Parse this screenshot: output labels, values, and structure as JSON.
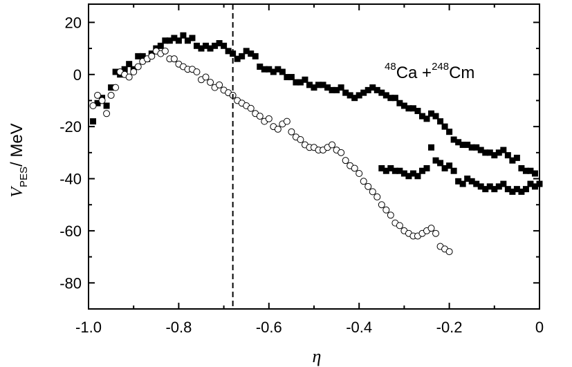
{
  "chart_data": {
    "type": "scatter",
    "xlabel": "η",
    "ylabel": {
      "main": "V",
      "sub": "PES",
      "rest": "/ MeV"
    },
    "xlim": [
      -1.0,
      0.0
    ],
    "ylim": [
      -90,
      27
    ],
    "x_ticks": [
      -1.0,
      -0.8,
      -0.6,
      -0.4,
      -0.2,
      0.0
    ],
    "x_tick_labels": [
      "-1.0",
      "-0.8",
      "-0.6",
      "-0.4",
      "-0.2",
      "0"
    ],
    "y_ticks": [
      20,
      0,
      -20,
      -40,
      -60,
      -80
    ],
    "y_tick_labels": [
      "20",
      "0",
      "-20",
      "-40",
      "-60",
      "-80"
    ],
    "grid": false,
    "vertical_line": {
      "x": -0.68,
      "style": "dashed"
    },
    "annotation": {
      "sup1": "48",
      "t1": "Ca +",
      "sup2": "248",
      "t2": "Cm"
    },
    "series": [
      {
        "marker": "filled-square",
        "points": [
          [
            -0.99,
            -18
          ],
          [
            -0.98,
            -11
          ],
          [
            -0.97,
            -9
          ],
          [
            -0.96,
            -12
          ],
          [
            -0.95,
            -5
          ],
          [
            -0.94,
            1
          ],
          [
            -0.93,
            0
          ],
          [
            -0.92,
            2
          ],
          [
            -0.91,
            4
          ],
          [
            -0.9,
            2
          ],
          [
            -0.89,
            7
          ],
          [
            -0.88,
            7
          ],
          [
            -0.87,
            6
          ],
          [
            -0.86,
            8
          ],
          [
            -0.85,
            10
          ],
          [
            -0.84,
            11
          ],
          [
            -0.83,
            13
          ],
          [
            -0.82,
            13
          ],
          [
            -0.81,
            14
          ],
          [
            -0.8,
            13
          ],
          [
            -0.79,
            15
          ],
          [
            -0.78,
            13
          ],
          [
            -0.77,
            14
          ],
          [
            -0.76,
            11
          ],
          [
            -0.75,
            10
          ],
          [
            -0.74,
            11
          ],
          [
            -0.73,
            10
          ],
          [
            -0.72,
            11
          ],
          [
            -0.71,
            12
          ],
          [
            -0.7,
            11
          ],
          [
            -0.69,
            9
          ],
          [
            -0.68,
            8
          ],
          [
            -0.67,
            6
          ],
          [
            -0.66,
            7
          ],
          [
            -0.65,
            9
          ],
          [
            -0.64,
            8
          ],
          [
            -0.63,
            7
          ],
          [
            -0.62,
            3
          ],
          [
            -0.61,
            2
          ],
          [
            -0.6,
            2
          ],
          [
            -0.59,
            1
          ],
          [
            -0.58,
            2
          ],
          [
            -0.57,
            1
          ],
          [
            -0.56,
            -1
          ],
          [
            -0.55,
            -1
          ],
          [
            -0.54,
            -3
          ],
          [
            -0.53,
            -3
          ],
          [
            -0.52,
            -2
          ],
          [
            -0.51,
            -4
          ],
          [
            -0.5,
            -5
          ],
          [
            -0.49,
            -4
          ],
          [
            -0.48,
            -4
          ],
          [
            -0.47,
            -5
          ],
          [
            -0.46,
            -6
          ],
          [
            -0.45,
            -6
          ],
          [
            -0.44,
            -5
          ],
          [
            -0.43,
            -7
          ],
          [
            -0.42,
            -8
          ],
          [
            -0.41,
            -9
          ],
          [
            -0.4,
            -8
          ],
          [
            -0.39,
            -7
          ],
          [
            -0.38,
            -6
          ],
          [
            -0.37,
            -5
          ],
          [
            -0.36,
            -6
          ],
          [
            -0.35,
            -7
          ],
          [
            -0.34,
            -8
          ],
          [
            -0.33,
            -9
          ],
          [
            -0.32,
            -9
          ],
          [
            -0.31,
            -11
          ],
          [
            -0.3,
            -12
          ],
          [
            -0.29,
            -13
          ],
          [
            -0.28,
            -13
          ],
          [
            -0.27,
            -14
          ],
          [
            -0.26,
            -16
          ],
          [
            -0.25,
            -17
          ],
          [
            -0.24,
            -15
          ],
          [
            -0.23,
            -16
          ],
          [
            -0.22,
            -18
          ],
          [
            -0.21,
            -20
          ],
          [
            -0.2,
            -22
          ],
          [
            -0.19,
            -25
          ],
          [
            -0.18,
            -26
          ],
          [
            -0.17,
            -27
          ],
          [
            -0.16,
            -27
          ],
          [
            -0.15,
            -28
          ],
          [
            -0.14,
            -28
          ],
          [
            -0.13,
            -29
          ],
          [
            -0.12,
            -30
          ],
          [
            -0.11,
            -30
          ],
          [
            -0.1,
            -31
          ],
          [
            -0.09,
            -30
          ],
          [
            -0.08,
            -29
          ],
          [
            -0.07,
            -31
          ],
          [
            -0.06,
            -33
          ],
          [
            -0.05,
            -32
          ],
          [
            -0.04,
            -36
          ],
          [
            -0.03,
            -37
          ],
          [
            -0.02,
            -37
          ],
          [
            -0.01,
            -38
          ],
          [
            0.0,
            -42
          ],
          [
            -0.35,
            -36
          ],
          [
            -0.34,
            -37
          ],
          [
            -0.33,
            -36
          ],
          [
            -0.32,
            -37
          ],
          [
            -0.31,
            -37
          ],
          [
            -0.3,
            -38
          ],
          [
            -0.29,
            -39
          ],
          [
            -0.28,
            -38
          ],
          [
            -0.27,
            -39
          ],
          [
            -0.26,
            -37
          ],
          [
            -0.25,
            -36
          ],
          [
            -0.24,
            -28
          ],
          [
            -0.23,
            -33
          ],
          [
            -0.22,
            -34
          ],
          [
            -0.21,
            -36
          ],
          [
            -0.2,
            -35
          ],
          [
            -0.19,
            -37
          ],
          [
            -0.18,
            -41
          ],
          [
            -0.17,
            -42
          ],
          [
            -0.16,
            -40
          ],
          [
            -0.15,
            -41
          ],
          [
            -0.14,
            -42
          ],
          [
            -0.13,
            -43
          ],
          [
            -0.12,
            -44
          ],
          [
            -0.11,
            -43
          ],
          [
            -0.1,
            -44
          ],
          [
            -0.09,
            -43
          ],
          [
            -0.08,
            -42
          ],
          [
            -0.07,
            -44
          ],
          [
            -0.06,
            -45
          ],
          [
            -0.05,
            -44
          ],
          [
            -0.04,
            -45
          ],
          [
            -0.03,
            -44
          ],
          [
            -0.02,
            -42
          ],
          [
            -0.01,
            -43
          ]
        ]
      },
      {
        "marker": "open-circle",
        "points": [
          [
            -0.99,
            -12
          ],
          [
            -0.98,
            -8
          ],
          [
            -0.97,
            -10
          ],
          [
            -0.96,
            -15
          ],
          [
            -0.95,
            -8
          ],
          [
            -0.94,
            -5
          ],
          [
            -0.93,
            1
          ],
          [
            -0.92,
            0
          ],
          [
            -0.91,
            -1
          ],
          [
            -0.9,
            1
          ],
          [
            -0.89,
            3
          ],
          [
            -0.88,
            5
          ],
          [
            -0.87,
            6
          ],
          [
            -0.86,
            7
          ],
          [
            -0.85,
            9
          ],
          [
            -0.84,
            8
          ],
          [
            -0.83,
            9
          ],
          [
            -0.82,
            6
          ],
          [
            -0.81,
            6
          ],
          [
            -0.8,
            4
          ],
          [
            -0.79,
            3
          ],
          [
            -0.78,
            2
          ],
          [
            -0.77,
            2
          ],
          [
            -0.76,
            1
          ],
          [
            -0.75,
            -2
          ],
          [
            -0.74,
            -1
          ],
          [
            -0.73,
            -3
          ],
          [
            -0.72,
            -5
          ],
          [
            -0.71,
            -4
          ],
          [
            -0.7,
            -6
          ],
          [
            -0.69,
            -7
          ],
          [
            -0.68,
            -8
          ],
          [
            -0.67,
            -10
          ],
          [
            -0.66,
            -11
          ],
          [
            -0.65,
            -12
          ],
          [
            -0.64,
            -13
          ],
          [
            -0.63,
            -15
          ],
          [
            -0.62,
            -16
          ],
          [
            -0.61,
            -18
          ],
          [
            -0.6,
            -17
          ],
          [
            -0.59,
            -20
          ],
          [
            -0.58,
            -21
          ],
          [
            -0.57,
            -19
          ],
          [
            -0.56,
            -18
          ],
          [
            -0.55,
            -22
          ],
          [
            -0.54,
            -24
          ],
          [
            -0.53,
            -25
          ],
          [
            -0.52,
            -27
          ],
          [
            -0.51,
            -28
          ],
          [
            -0.5,
            -28
          ],
          [
            -0.49,
            -29
          ],
          [
            -0.48,
            -29
          ],
          [
            -0.47,
            -28
          ],
          [
            -0.46,
            -27
          ],
          [
            -0.45,
            -29
          ],
          [
            -0.44,
            -30
          ],
          [
            -0.43,
            -33
          ],
          [
            -0.42,
            -35
          ],
          [
            -0.41,
            -36
          ],
          [
            -0.4,
            -38
          ],
          [
            -0.39,
            -41
          ],
          [
            -0.38,
            -43
          ],
          [
            -0.37,
            -45
          ],
          [
            -0.36,
            -47
          ],
          [
            -0.35,
            -50
          ],
          [
            -0.34,
            -52
          ],
          [
            -0.33,
            -54
          ],
          [
            -0.32,
            -57
          ],
          [
            -0.31,
            -58
          ],
          [
            -0.3,
            -60
          ],
          [
            -0.29,
            -61
          ],
          [
            -0.28,
            -62
          ],
          [
            -0.27,
            -62
          ],
          [
            -0.26,
            -61
          ],
          [
            -0.25,
            -60
          ],
          [
            -0.24,
            -59
          ],
          [
            -0.23,
            -61
          ],
          [
            -0.22,
            -66
          ],
          [
            -0.21,
            -67
          ],
          [
            -0.2,
            -68
          ]
        ]
      }
    ]
  }
}
